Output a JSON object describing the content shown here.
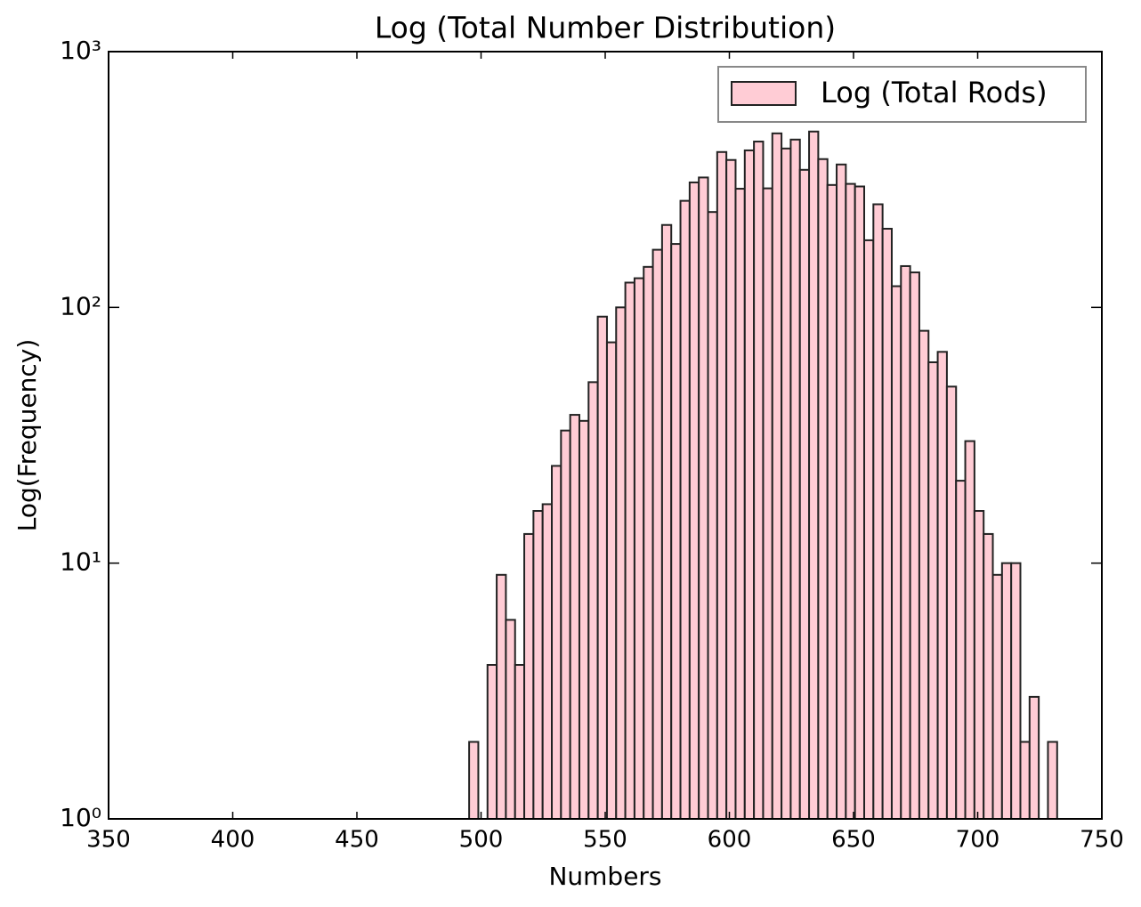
{
  "chart_data": {
    "type": "histogram",
    "title": "Log (Total Number Distribution)",
    "x_label": "Numbers",
    "y_label": "Log(Frequency)",
    "log_y": true,
    "bins": [
      362.0,
      365.7,
      369.4,
      373.1,
      376.8,
      380.5,
      384.2,
      387.9,
      391.6,
      395.3,
      399.0,
      402.7,
      406.4,
      410.1,
      413.8,
      417.5,
      421.2,
      424.9,
      428.6,
      432.3,
      436.0,
      439.7,
      443.4,
      447.1,
      450.8,
      454.5,
      458.2,
      461.9,
      465.6,
      469.3,
      473.0,
      476.7,
      480.4,
      484.1,
      487.8,
      491.5,
      495.2,
      498.9,
      502.6,
      506.3,
      510.0,
      513.7,
      517.4,
      521.1,
      524.8,
      528.5,
      532.2,
      535.9,
      539.6,
      543.3,
      547.0,
      550.7,
      554.4,
      558.1,
      561.8,
      565.5,
      569.2,
      572.9,
      576.6,
      580.3,
      584.0,
      587.7,
      591.4,
      595.1,
      598.8,
      602.5,
      606.2,
      609.9,
      613.6,
      617.3,
      621.0,
      624.7,
      628.4,
      632.1,
      635.8,
      639.5,
      643.2,
      646.9,
      650.6,
      654.3,
      658.0,
      661.7,
      665.4,
      669.1,
      672.8,
      676.5,
      680.2,
      683.9,
      687.6,
      691.3,
      695.0,
      698.7,
      702.4,
      706.1,
      709.8,
      713.5,
      717.2,
      720.9,
      724.6,
      728.3,
      732.0
    ],
    "series": [
      {
        "name": "Log (Total Rods)",
        "color": "#ffccd5",
        "edgecolor": "#222222",
        "values": [
          1,
          0,
          0,
          0,
          0,
          0,
          0,
          0,
          0,
          0,
          0,
          0,
          0,
          0,
          0,
          0,
          0,
          0,
          0,
          0,
          0,
          0,
          0,
          0,
          1,
          0,
          0,
          0,
          0,
          0,
          0,
          0,
          0,
          0,
          0,
          0,
          2,
          0,
          4,
          9,
          6,
          4,
          13,
          16,
          17,
          24,
          33,
          38,
          36,
          51,
          92,
          73,
          100,
          125,
          130,
          144,
          168,
          210,
          177,
          261,
          308,
          322,
          236,
          405,
          377,
          291,
          411,
          445,
          292,
          479,
          418,
          453,
          345,
          487,
          380,
          301,
          362,
          304,
          297,
          183,
          253,
          203,
          121,
          145,
          137,
          81,
          61,
          67,
          49,
          21,
          30,
          16,
          13,
          9,
          10,
          10,
          2,
          3,
          0,
          2
        ]
      }
    ],
    "xlim": [
      350,
      750
    ],
    "xticks": [
      350,
      400,
      450,
      500,
      550,
      600,
      650,
      700,
      750
    ],
    "ylim": [
      1,
      1000
    ],
    "yticks": [
      {
        "value": 1,
        "label": "10⁰"
      },
      {
        "value": 10,
        "label": "10¹"
      },
      {
        "value": 100,
        "label": "10²"
      },
      {
        "value": 1000,
        "label": "10³"
      }
    ],
    "legend": "upper right"
  }
}
